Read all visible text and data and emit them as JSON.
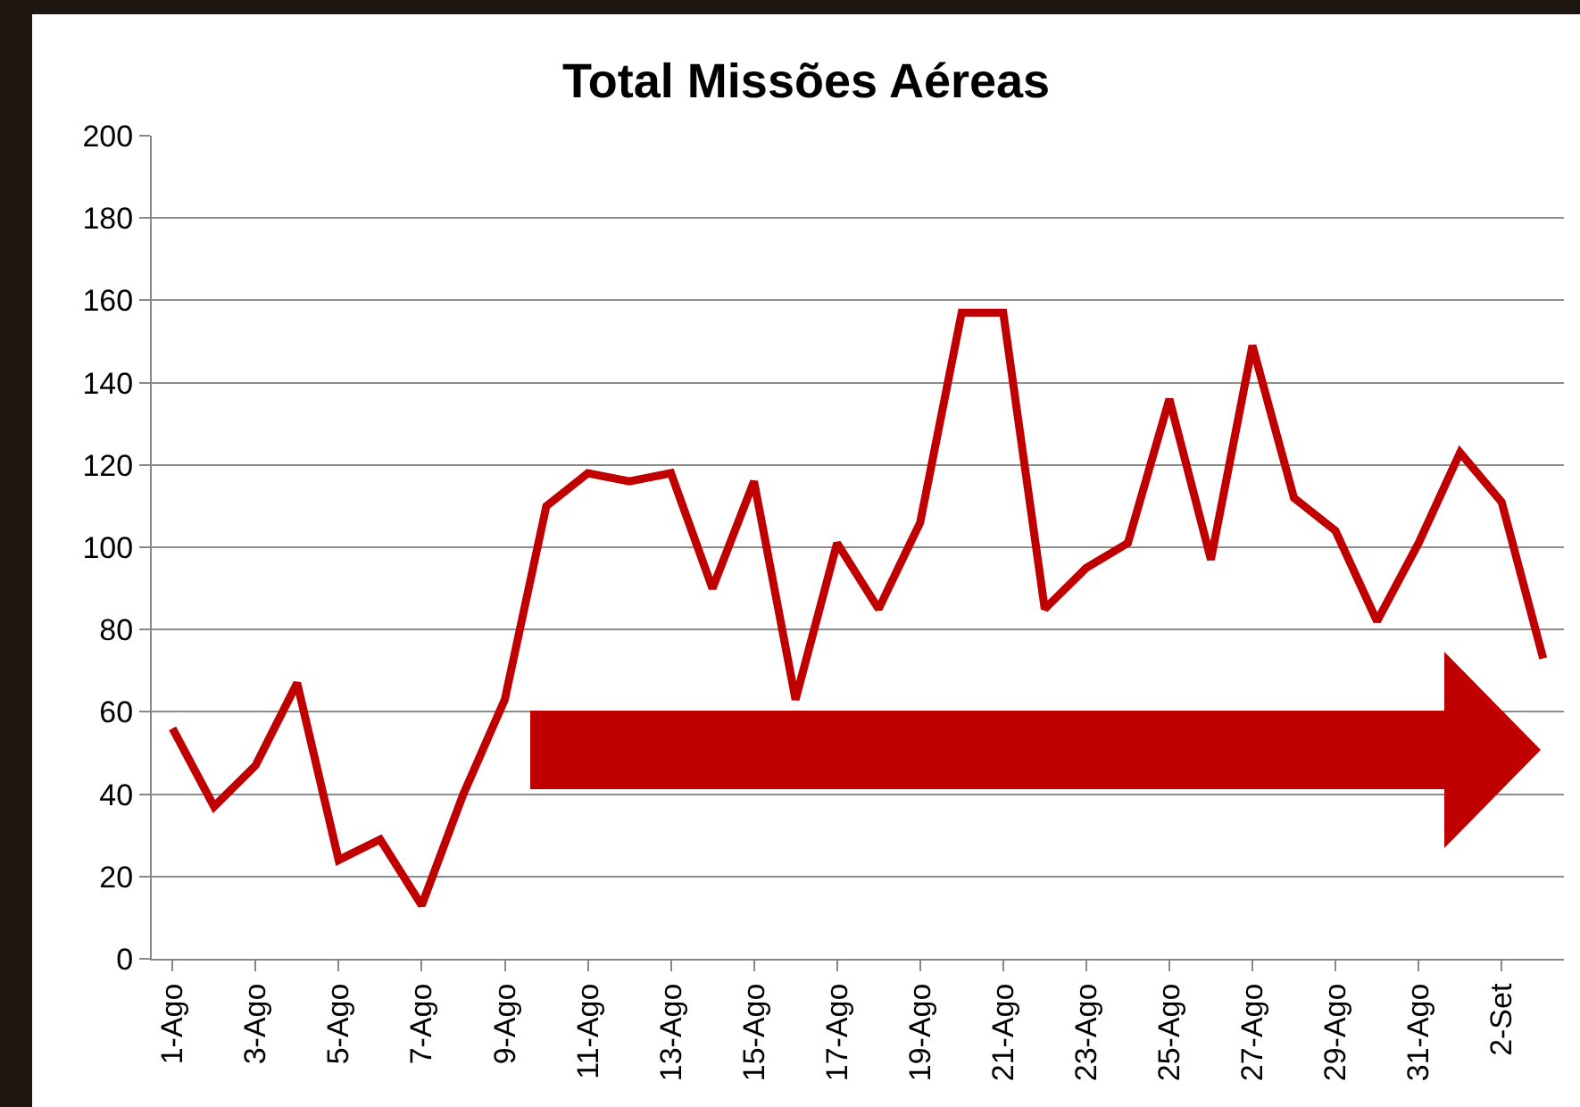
{
  "chart_data": {
    "type": "line",
    "title": "Total Missões Aéreas",
    "categories": [
      "1-Ago",
      null,
      "3-Ago",
      null,
      "5-Ago",
      null,
      "7-Ago",
      null,
      "9-Ago",
      null,
      "11-Ago",
      null,
      "13-Ago",
      null,
      "15-Ago",
      null,
      "17-Ago",
      null,
      "19-Ago",
      null,
      "21-Ago",
      null,
      "23-Ago",
      null,
      "25-Ago",
      null,
      "27-Ago",
      null,
      "29-Ago",
      null,
      "31-Ago",
      null,
      "2-Set",
      null
    ],
    "series": [
      {
        "color": "#c00000",
        "values": [
          56,
          37,
          47,
          67,
          24,
          29,
          13,
          40,
          63,
          110,
          118,
          116,
          118,
          90,
          116,
          63,
          101,
          85,
          106,
          157,
          157,
          85,
          95,
          101,
          136,
          97,
          149,
          112,
          104,
          82,
          101,
          123,
          111,
          73
        ]
      }
    ],
    "ylim": [
      0,
      200
    ],
    "yticks": [
      0,
      20,
      40,
      60,
      80,
      100,
      120,
      140,
      160,
      180,
      200
    ],
    "grid": "y",
    "marker": "none",
    "line_style": "solid"
  }
}
